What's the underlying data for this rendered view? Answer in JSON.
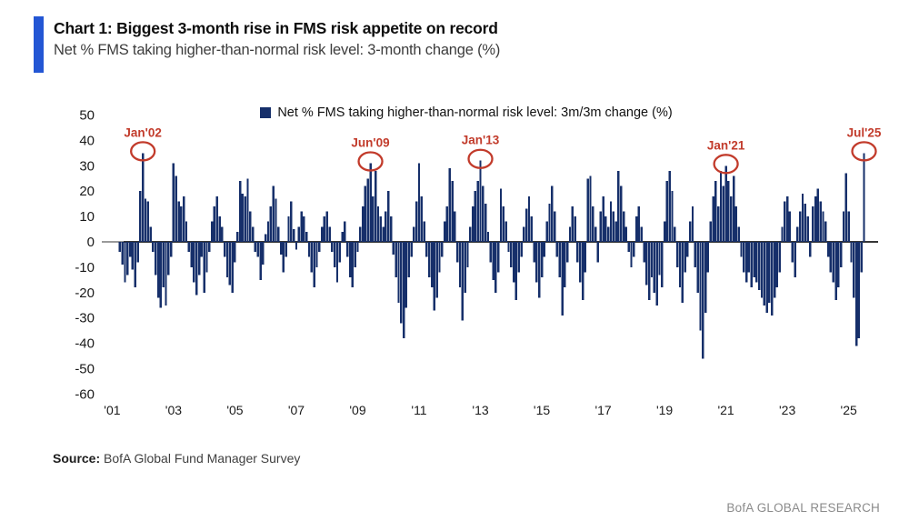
{
  "header": {
    "accent_color": "#2356d4"
  },
  "legend": {
    "label": "Net % FMS taking higher-than-normal risk level: 3m/3m change (%)"
  },
  "source": {
    "label": "Source:",
    "text": "BofA Global Fund Manager Survey"
  },
  "footer": {
    "brand": "BofA GLOBAL RESEARCH"
  },
  "chart_data": {
    "type": "bar",
    "title": "Chart 1: Biggest 3-month rise in FMS risk appetite on record",
    "subtitle": "Net % FMS taking higher-than-normal risk level: 3-month change (%)",
    "legend": "Net % FMS taking higher-than-normal risk level: 3m/3m change (%)",
    "bar_color": "#162f6a",
    "annotation_color": "#c23b2b",
    "axis_color": "#555555",
    "ylim": [
      -60,
      50
    ],
    "y_ticks": [
      50,
      40,
      30,
      20,
      10,
      0,
      -10,
      -20,
      -30,
      -40,
      -50,
      -60
    ],
    "x_ticks": [
      {
        "year": 2001,
        "label": "'01"
      },
      {
        "year": 2003,
        "label": "'03"
      },
      {
        "year": 2005,
        "label": "'05"
      },
      {
        "year": 2007,
        "label": "'07"
      },
      {
        "year": 2009,
        "label": "'09"
      },
      {
        "year": 2011,
        "label": "'11"
      },
      {
        "year": 2013,
        "label": "'13"
      },
      {
        "year": 2015,
        "label": "'15"
      },
      {
        "year": 2017,
        "label": "'17"
      },
      {
        "year": 2019,
        "label": "'19"
      },
      {
        "year": 2021,
        "label": "'21"
      },
      {
        "year": 2023,
        "label": "'23"
      },
      {
        "year": 2025,
        "label": "'25"
      }
    ],
    "frequency": "monthly",
    "start_year": 2001,
    "start_month": 4,
    "values": [
      -4,
      -9,
      -16,
      -13,
      -6,
      -11,
      -18,
      -8,
      20,
      35,
      17,
      16,
      6,
      -4,
      -13,
      -22,
      -26,
      -18,
      -25,
      -13,
      -6,
      31,
      26,
      16,
      14,
      18,
      8,
      -4,
      -10,
      -16,
      -21,
      -13,
      -6,
      -20,
      -12,
      -4,
      8,
      14,
      18,
      10,
      6,
      -6,
      -14,
      -17,
      -20,
      -8,
      4,
      24,
      19,
      18,
      25,
      12,
      6,
      -4,
      -6,
      -15,
      -9,
      3,
      8,
      14,
      22,
      17,
      6,
      -5,
      -12,
      -6,
      10,
      16,
      5,
      -3,
      6,
      12,
      10,
      4,
      -6,
      -12,
      -18,
      -10,
      -4,
      6,
      10,
      12,
      6,
      -4,
      -10,
      -16,
      -8,
      4,
      8,
      -6,
      -14,
      -18,
      -10,
      -4,
      6,
      14,
      22,
      25,
      31,
      18,
      28,
      14,
      10,
      6,
      12,
      20,
      10,
      -5,
      -14,
      -24,
      -32,
      -38,
      -26,
      -14,
      -6,
      6,
      16,
      31,
      18,
      8,
      -6,
      -14,
      -18,
      -27,
      -22,
      -12,
      -6,
      8,
      14,
      29,
      24,
      12,
      -8,
      -18,
      -31,
      -20,
      -10,
      6,
      14,
      20,
      24,
      32,
      22,
      15,
      4,
      -8,
      -15,
      -20,
      -12,
      21,
      14,
      8,
      -4,
      -10,
      -16,
      -23,
      -12,
      -6,
      6,
      13,
      18,
      10,
      -8,
      -16,
      -22,
      -14,
      -6,
      8,
      15,
      22,
      12,
      -6,
      -14,
      -29,
      -18,
      -8,
      6,
      14,
      10,
      -8,
      -16,
      -23,
      -12,
      25,
      26,
      14,
      6,
      -8,
      12,
      18,
      10,
      6,
      16,
      12,
      8,
      28,
      22,
      12,
      6,
      -4,
      -10,
      -6,
      10,
      14,
      6,
      -8,
      -17,
      -23,
      -14,
      -20,
      -25,
      -13,
      -18,
      8,
      24,
      28,
      20,
      6,
      -10,
      -18,
      -24,
      -12,
      -6,
      8,
      14,
      -10,
      -20,
      -35,
      -46,
      -28,
      -12,
      8,
      18,
      24,
      14,
      28,
      22,
      30,
      24,
      18,
      26,
      14,
      6,
      -6,
      -12,
      -16,
      -12,
      -18,
      -14,
      -16,
      -19,
      -22,
      -25,
      -28,
      -24,
      -29,
      -22,
      -18,
      -12,
      6,
      16,
      18,
      12,
      -8,
      -14,
      6,
      12,
      19,
      15,
      10,
      -6,
      14,
      18,
      21,
      16,
      12,
      8,
      -6,
      -12,
      -16,
      -23,
      -18,
      -10,
      12,
      27,
      12,
      -8,
      -22,
      -41,
      -38,
      -12,
      35
    ],
    "annotations": [
      {
        "label": "Jan'02",
        "year": 2002,
        "month": 1,
        "value": 35
      },
      {
        "label": "Jun'09",
        "year": 2009,
        "month": 6,
        "value": 31
      },
      {
        "label": "Jan'13",
        "year": 2013,
        "month": 1,
        "value": 32
      },
      {
        "label": "Jan'21",
        "year": 2021,
        "month": 1,
        "value": 30
      },
      {
        "label": "Jul'25",
        "year": 2025,
        "month": 7,
        "value": 35
      }
    ]
  }
}
